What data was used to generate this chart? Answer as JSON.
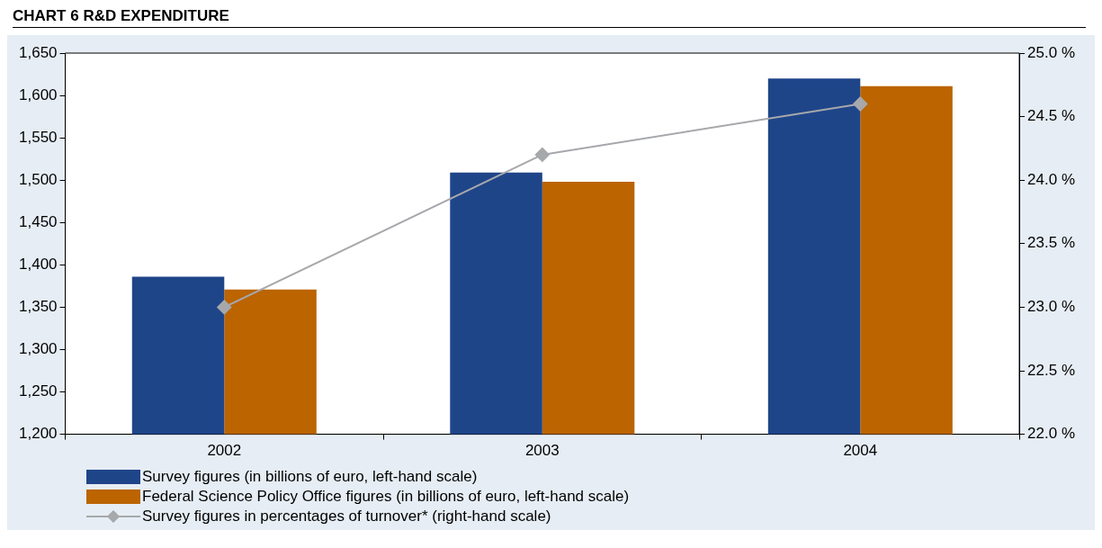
{
  "chart_data": {
    "type": "bar",
    "title": "CHART 6      R&D EXPENDITURE",
    "categories": [
      "2002",
      "2003",
      "2004"
    ],
    "series": [
      {
        "name": "Survey figures (in billions of euro, left-hand scale)",
        "color": "#1f4589",
        "values": [
          1386,
          1509,
          1620
        ]
      },
      {
        "name": "Federal Science Policy Office figures (in billions of euro, left-hand scale)",
        "color": "#bb6400",
        "values": [
          1371,
          1498,
          1611
        ]
      },
      {
        "name": "Survey figures in percentages of turnover* (right-hand scale)",
        "type": "line",
        "axis": "y2",
        "color": "#a6a8ab",
        "marker": "diamond",
        "values": [
          23.0,
          24.2,
          24.6
        ]
      }
    ],
    "ylim": [
      1200,
      1650
    ],
    "yticks": [
      {
        "value": 1200,
        "label": "1,200"
      },
      {
        "value": 1250,
        "label": "1,250"
      },
      {
        "value": 1300,
        "label": "1,300"
      },
      {
        "value": 1350,
        "label": "1,350"
      },
      {
        "value": 1400,
        "label": "1,400"
      },
      {
        "value": 1450,
        "label": "1,450"
      },
      {
        "value": 1500,
        "label": "1,500"
      },
      {
        "value": 1550,
        "label": "1,550"
      },
      {
        "value": 1600,
        "label": "1,600"
      },
      {
        "value": 1650,
        "label": "1,650"
      }
    ],
    "y2lim": [
      22.0,
      25.0
    ],
    "y2ticks": [
      {
        "value": 22.0,
        "label": "22.0 %"
      },
      {
        "value": 22.5,
        "label": "22.5 %"
      },
      {
        "value": 23.0,
        "label": "23.0 %"
      },
      {
        "value": 23.5,
        "label": "23.5 %"
      },
      {
        "value": 24.0,
        "label": "24.0 %"
      },
      {
        "value": 24.5,
        "label": "24.5 %"
      },
      {
        "value": 25.0,
        "label": "25.0 %"
      }
    ],
    "grid": false,
    "legend": "bottom"
  }
}
